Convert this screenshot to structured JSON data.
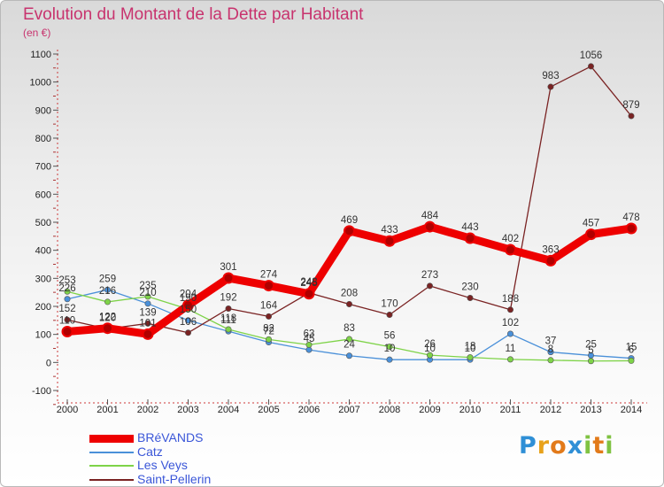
{
  "title": "Evolution du Montant de la Dette par Habitant",
  "unit": "(en €)",
  "logo": {
    "letters": [
      "P",
      "r",
      "o",
      "x",
      "i",
      "t",
      "i"
    ],
    "colors": [
      "#2f8fd6",
      "#e8a21b",
      "#e27a1a",
      "#2f8fd6",
      "#7fc242",
      "#e27a1a",
      "#7fc242"
    ]
  },
  "chart_data": {
    "type": "line",
    "title": "Evolution du Montant de la Dette par Habitant",
    "ylabel": "(en €)",
    "xlabel": "",
    "ylim": [
      -100,
      1100
    ],
    "yticks": [
      -100,
      0,
      100,
      200,
      300,
      400,
      500,
      600,
      700,
      800,
      900,
      1000,
      1100
    ],
    "categories": [
      "2000",
      "2001",
      "2002",
      "2003",
      "2004",
      "2005",
      "2006",
      "2007",
      "2008",
      "2009",
      "2010",
      "2011",
      "2012",
      "2013",
      "2014"
    ],
    "grid": false,
    "legend_position": "bottom-left",
    "series": [
      {
        "name": "BRéVANDS",
        "color": "#ee0000",
        "values": [
          110,
          122,
          101,
          204,
          301,
          274,
          245,
          469,
          433,
          484,
          443,
          402,
          363,
          457,
          478
        ]
      },
      {
        "name": "Catz",
        "color": "#4a90d9",
        "values": [
          226,
          259,
          210,
          150,
          111,
          72,
          45,
          24,
          10,
          10,
          10,
          102,
          37,
          25,
          15
        ]
      },
      {
        "name": "Les Veys",
        "color": "#7ed348",
        "values": [
          253,
          216,
          235,
          190,
          118,
          82,
          63,
          83,
          56,
          26,
          18,
          11,
          8,
          5,
          6
        ]
      },
      {
        "name": "Saint-Pellerin",
        "color": "#7a2323",
        "values": [
          152,
          120,
          139,
          106,
          192,
          164,
          248,
          208,
          170,
          273,
          230,
          188,
          983,
          1056,
          879
        ]
      }
    ]
  }
}
